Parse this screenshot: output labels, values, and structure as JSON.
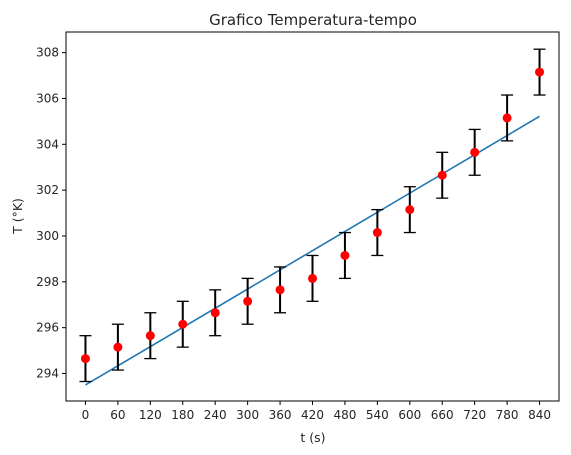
{
  "chart_data": {
    "type": "scatter",
    "title": "Grafico Temperatura-tempo",
    "xlabel": "t (s)",
    "ylabel": "T (°K)",
    "xlim": [
      -36,
      876
    ],
    "ylim": [
      292.8,
      308.9
    ],
    "x_ticks": [
      0,
      60,
      120,
      180,
      240,
      300,
      360,
      420,
      480,
      540,
      600,
      660,
      720,
      780,
      840
    ],
    "y_ticks": [
      294,
      296,
      298,
      300,
      302,
      304,
      306,
      308
    ],
    "grid": false,
    "legend": "none",
    "series": [
      {
        "kind": "points-with-error-bars",
        "color": "#ff0000",
        "error_color": "#000000",
        "x": [
          0,
          60,
          120,
          180,
          240,
          300,
          360,
          420,
          480,
          540,
          600,
          660,
          720,
          780,
          840
        ],
        "y": [
          294.65,
          295.15,
          295.65,
          296.15,
          296.65,
          297.15,
          297.65,
          298.15,
          299.15,
          300.15,
          301.15,
          302.65,
          303.65,
          305.15,
          307.15
        ],
        "yerr": 1.0
      },
      {
        "kind": "fit-line",
        "color": "#1f77b4",
        "x": [
          0,
          840
        ],
        "y": [
          293.5,
          305.22
        ]
      }
    ]
  }
}
